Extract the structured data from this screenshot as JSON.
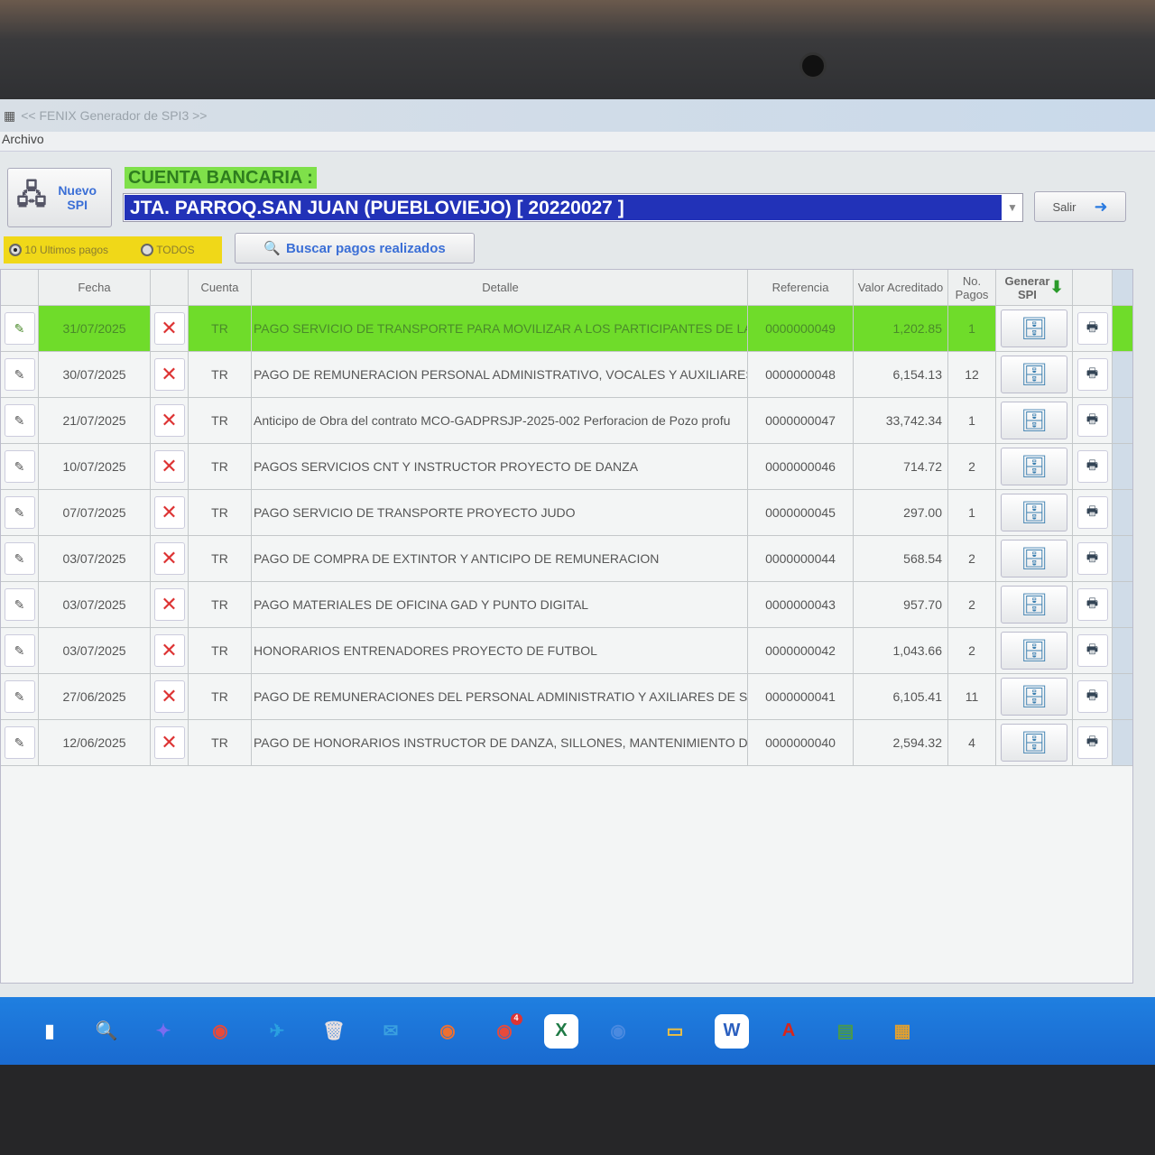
{
  "window": {
    "title": "<< FENIX Generador de SPI3 >>",
    "menu": [
      "Archivo"
    ]
  },
  "toolbar": {
    "nuevo_label": "Nuevo SPI",
    "cuenta_label": "CUENTA BANCARIA :",
    "cuenta_value": "JTA. PARROQ.SAN JUAN (PUEBLOVIEJO) [ 20220027 ]",
    "salir_label": "Salir",
    "radio_last": "10 Ultimos pagos",
    "radio_all": "TODOS",
    "radio_selected": "10 Ultimos pagos",
    "buscar_label": "Buscar pagos realizados"
  },
  "table": {
    "headers": {
      "fecha": "Fecha",
      "cuenta": "Cuenta",
      "detalle": "Detalle",
      "referencia": "Referencia",
      "valor": "Valor Acreditado",
      "pagos": "No. Pagos",
      "generar": "Generar SPI"
    },
    "selected_row": 0,
    "rows": [
      {
        "fecha": "31/07/2025",
        "cuenta": "TR",
        "detalle": "PAGO SERVICIO DE TRANSPORTE PARA MOVILIZAR A LOS PARTICIPANTES DE LA",
        "referencia": "0000000049",
        "valor": "1,202.85",
        "pagos": "1"
      },
      {
        "fecha": "30/07/2025",
        "cuenta": "TR",
        "detalle": "PAGO DE REMUNERACION PERSONAL ADMINISTRATIVO, VOCALES Y AUXILIARES",
        "referencia": "0000000048",
        "valor": "6,154.13",
        "pagos": "12"
      },
      {
        "fecha": "21/07/2025",
        "cuenta": "TR",
        "detalle": "Anticipo de Obra del contrato MCO-GADPRSJP-2025-002 Perforacion de Pozo profu",
        "referencia": "0000000047",
        "valor": "33,742.34",
        "pagos": "1"
      },
      {
        "fecha": "10/07/2025",
        "cuenta": "TR",
        "detalle": "PAGOS SERVICIOS CNT Y INSTRUCTOR PROYECTO DE DANZA",
        "referencia": "0000000046",
        "valor": "714.72",
        "pagos": "2"
      },
      {
        "fecha": "07/07/2025",
        "cuenta": "TR",
        "detalle": "PAGO SERVICIO DE TRANSPORTE PROYECTO JUDO",
        "referencia": "0000000045",
        "valor": "297.00",
        "pagos": "1"
      },
      {
        "fecha": "03/07/2025",
        "cuenta": "TR",
        "detalle": "PAGO DE COMPRA DE EXTINTOR Y ANTICIPO DE REMUNERACION",
        "referencia": "0000000044",
        "valor": "568.54",
        "pagos": "2"
      },
      {
        "fecha": "03/07/2025",
        "cuenta": "TR",
        "detalle": "PAGO MATERIALES DE OFICINA GAD Y PUNTO DIGITAL",
        "referencia": "0000000043",
        "valor": "957.70",
        "pagos": "2"
      },
      {
        "fecha": "03/07/2025",
        "cuenta": "TR",
        "detalle": "HONORARIOS ENTRENADORES PROYECTO DE FUTBOL",
        "referencia": "0000000042",
        "valor": "1,043.66",
        "pagos": "2"
      },
      {
        "fecha": "27/06/2025",
        "cuenta": "TR",
        "detalle": "PAGO DE REMUNERACIONES DEL PERSONAL ADMINISTRATIO Y AXILIARES DE SER",
        "referencia": "0000000041",
        "valor": "6,105.41",
        "pagos": "11"
      },
      {
        "fecha": "12/06/2025",
        "cuenta": "TR",
        "detalle": "PAGO DE HONORARIOS INSTRUCTOR DE DANZA, SILLONES, MANTENIMIENTO DE",
        "referencia": "0000000040",
        "valor": "2,594.32",
        "pagos": "4"
      }
    ]
  },
  "taskbar": {
    "icons": [
      "windows-icon",
      "search-icon",
      "copilot-icon",
      "chrome-icon",
      "telegram-icon",
      "recycle-icon",
      "mail-icon",
      "firefox-icon",
      "chrome-badge-icon",
      "excel-icon",
      "chrome-profile-icon",
      "folder-icon",
      "word-icon",
      "acrobat-icon",
      "app-icon",
      "fenix-icon"
    ],
    "chrome_badge": "4"
  },
  "colors": {
    "selected_row": "#6fdc2a",
    "combo_bg": "#2232b8",
    "label_bg": "#7fe04a",
    "radio_bg": "#f0d818",
    "taskbar": "#1f7fe0"
  }
}
